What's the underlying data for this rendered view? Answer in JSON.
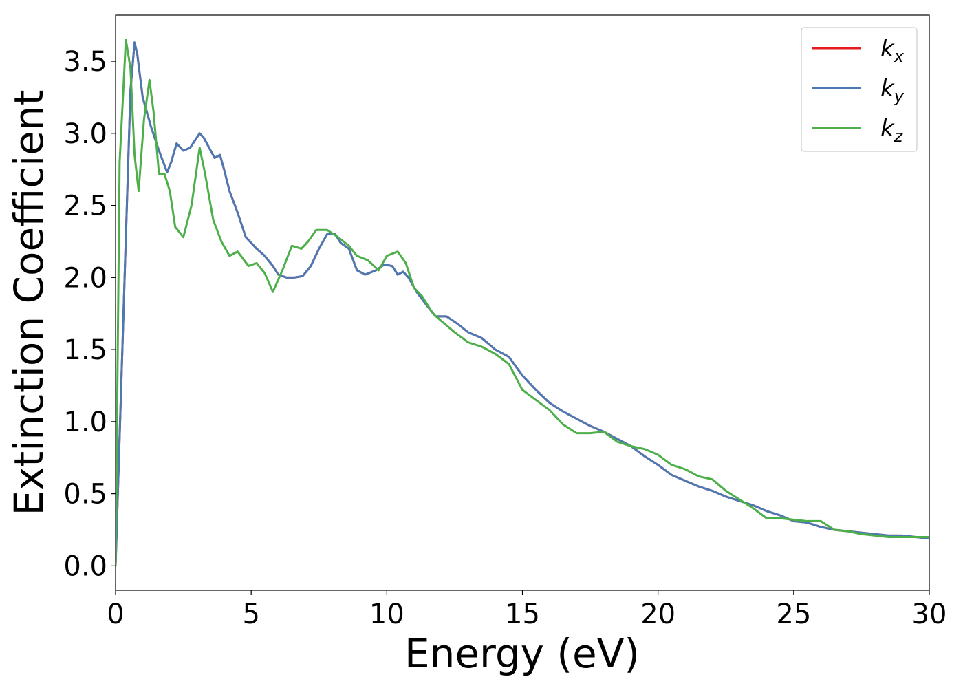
{
  "chart_data": {
    "type": "line",
    "xlabel": "Energy (eV)",
    "ylabel": "Extinction Coefficient",
    "xlim": [
      0,
      30
    ],
    "ylim": [
      -0.17,
      3.82
    ],
    "xticks": [
      "0",
      "5",
      "10",
      "15",
      "20",
      "25",
      "30"
    ],
    "yticks": [
      "0.0",
      "0.5",
      "1.0",
      "1.5",
      "2.0",
      "2.5",
      "3.0",
      "3.5"
    ],
    "grid": false,
    "legend_position": "top-right",
    "series": [
      {
        "name": "k",
        "subscript": "x",
        "color": "#e41a1c",
        "x": [
          0,
          0.3,
          0.55,
          0.7,
          0.8,
          1.0,
          1.3,
          1.6,
          1.9,
          2.05,
          2.25,
          2.5,
          2.75,
          3.1,
          3.25,
          3.45,
          3.65,
          3.85,
          4.0,
          4.2,
          4.5,
          4.8,
          5.2,
          5.5,
          5.8,
          6.0,
          6.3,
          6.6,
          6.9,
          7.2,
          7.5,
          7.8,
          8.1,
          8.3,
          8.6,
          8.9,
          9.2,
          9.6,
          9.9,
          10.2,
          10.4,
          10.6,
          10.8,
          11.1,
          11.5,
          11.8,
          12.2,
          12.6,
          13.0,
          13.5,
          14.0,
          14.5,
          15.0,
          15.5,
          16.0,
          16.5,
          17.0,
          17.5,
          18.0,
          18.5,
          19.0,
          19.5,
          20.0,
          20.5,
          21.0,
          21.5,
          22.0,
          22.5,
          23.0,
          23.5,
          24.0,
          24.5,
          25.0,
          25.5,
          26.0,
          26.5,
          27.0,
          27.5,
          28.0,
          28.5,
          29.0,
          29.5,
          30.0
        ],
        "y": [
          0.0,
          1.8,
          3.3,
          3.63,
          3.55,
          3.25,
          3.05,
          2.88,
          2.73,
          2.8,
          2.93,
          2.88,
          2.9,
          3.0,
          2.97,
          2.9,
          2.83,
          2.85,
          2.75,
          2.6,
          2.45,
          2.28,
          2.2,
          2.15,
          2.08,
          2.02,
          2.0,
          2.0,
          2.01,
          2.08,
          2.2,
          2.3,
          2.3,
          2.24,
          2.2,
          2.05,
          2.02,
          2.05,
          2.09,
          2.08,
          2.02,
          2.04,
          2.0,
          1.9,
          1.8,
          1.73,
          1.73,
          1.68,
          1.62,
          1.58,
          1.5,
          1.45,
          1.32,
          1.22,
          1.13,
          1.07,
          1.02,
          0.97,
          0.93,
          0.88,
          0.83,
          0.76,
          0.7,
          0.63,
          0.59,
          0.55,
          0.52,
          0.48,
          0.45,
          0.42,
          0.38,
          0.35,
          0.31,
          0.3,
          0.27,
          0.25,
          0.24,
          0.23,
          0.22,
          0.21,
          0.21,
          0.2,
          0.19
        ]
      },
      {
        "name": "k",
        "subscript": "y",
        "color": "#4a79b3",
        "x": [
          0,
          0.3,
          0.55,
          0.7,
          0.8,
          1.0,
          1.3,
          1.6,
          1.9,
          2.05,
          2.25,
          2.5,
          2.75,
          3.1,
          3.25,
          3.45,
          3.65,
          3.85,
          4.0,
          4.2,
          4.5,
          4.8,
          5.2,
          5.5,
          5.8,
          6.0,
          6.3,
          6.6,
          6.9,
          7.2,
          7.5,
          7.8,
          8.1,
          8.3,
          8.6,
          8.9,
          9.2,
          9.6,
          9.9,
          10.2,
          10.4,
          10.6,
          10.8,
          11.1,
          11.5,
          11.8,
          12.2,
          12.6,
          13.0,
          13.5,
          14.0,
          14.5,
          15.0,
          15.5,
          16.0,
          16.5,
          17.0,
          17.5,
          18.0,
          18.5,
          19.0,
          19.5,
          20.0,
          20.5,
          21.0,
          21.5,
          22.0,
          22.5,
          23.0,
          23.5,
          24.0,
          24.5,
          25.0,
          25.5,
          26.0,
          26.5,
          27.0,
          27.5,
          28.0,
          28.5,
          29.0,
          29.5,
          30.0
        ],
        "y": [
          0.0,
          1.8,
          3.3,
          3.63,
          3.55,
          3.25,
          3.05,
          2.88,
          2.73,
          2.8,
          2.93,
          2.88,
          2.9,
          3.0,
          2.97,
          2.9,
          2.83,
          2.85,
          2.75,
          2.6,
          2.45,
          2.28,
          2.2,
          2.15,
          2.08,
          2.02,
          2.0,
          2.0,
          2.01,
          2.08,
          2.2,
          2.3,
          2.3,
          2.24,
          2.2,
          2.05,
          2.02,
          2.05,
          2.09,
          2.08,
          2.02,
          2.04,
          2.0,
          1.9,
          1.8,
          1.73,
          1.73,
          1.68,
          1.62,
          1.58,
          1.5,
          1.45,
          1.32,
          1.22,
          1.13,
          1.07,
          1.02,
          0.97,
          0.93,
          0.88,
          0.83,
          0.76,
          0.7,
          0.63,
          0.59,
          0.55,
          0.52,
          0.48,
          0.45,
          0.42,
          0.38,
          0.35,
          0.31,
          0.3,
          0.27,
          0.25,
          0.24,
          0.23,
          0.22,
          0.21,
          0.21,
          0.2,
          0.19
        ]
      },
      {
        "name": "k",
        "subscript": "z",
        "color": "#4daf4a",
        "x": [
          0,
          0.15,
          0.38,
          0.55,
          0.7,
          0.85,
          1.05,
          1.25,
          1.4,
          1.6,
          1.8,
          2.0,
          2.2,
          2.5,
          2.8,
          3.1,
          3.3,
          3.6,
          3.9,
          4.2,
          4.5,
          4.9,
          5.2,
          5.5,
          5.8,
          6.15,
          6.5,
          6.85,
          7.1,
          7.4,
          7.8,
          8.2,
          8.6,
          8.9,
          9.3,
          9.7,
          10.0,
          10.4,
          10.7,
          11.0,
          11.3,
          11.7,
          12.0,
          12.5,
          13.0,
          13.5,
          14.0,
          14.5,
          15.0,
          15.5,
          16.0,
          16.5,
          17.0,
          17.5,
          18.0,
          18.5,
          19.0,
          19.5,
          20.0,
          20.5,
          21.0,
          21.5,
          22.0,
          22.5,
          23.0,
          23.5,
          24.0,
          24.5,
          25.0,
          25.5,
          26.0,
          26.5,
          27.0,
          27.5,
          28.0,
          28.5,
          29.0,
          29.5,
          30.0
        ],
        "y": [
          0.0,
          2.8,
          3.65,
          3.45,
          2.85,
          2.6,
          3.1,
          3.37,
          3.15,
          2.72,
          2.72,
          2.6,
          2.35,
          2.28,
          2.5,
          2.9,
          2.72,
          2.4,
          2.25,
          2.15,
          2.18,
          2.08,
          2.1,
          2.03,
          1.9,
          2.05,
          2.22,
          2.2,
          2.25,
          2.33,
          2.33,
          2.28,
          2.22,
          2.15,
          2.12,
          2.05,
          2.15,
          2.18,
          2.1,
          1.93,
          1.87,
          1.75,
          1.7,
          1.62,
          1.55,
          1.52,
          1.47,
          1.4,
          1.22,
          1.15,
          1.08,
          0.98,
          0.92,
          0.92,
          0.93,
          0.86,
          0.83,
          0.81,
          0.77,
          0.7,
          0.67,
          0.62,
          0.6,
          0.52,
          0.46,
          0.4,
          0.33,
          0.33,
          0.32,
          0.31,
          0.31,
          0.25,
          0.24,
          0.22,
          0.21,
          0.2,
          0.2,
          0.2,
          0.2
        ]
      }
    ]
  }
}
